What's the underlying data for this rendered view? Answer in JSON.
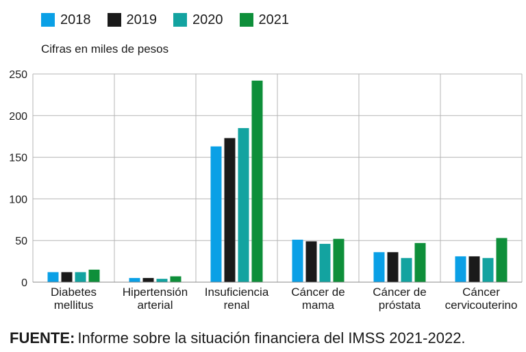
{
  "legend": [
    {
      "label": "2018",
      "color": "#0aa0e6"
    },
    {
      "label": "2019",
      "color": "#1a1a1a"
    },
    {
      "label": "2020",
      "color": "#13a3a0"
    },
    {
      "label": "2021",
      "color": "#0e8f3a"
    }
  ],
  "subtitle": "Cifras en miles de pesos",
  "source": {
    "prefix": "FUENTE:",
    "text": "Informe sobre la situación financiera del IMSS 2021-2022."
  },
  "chart_data": {
    "type": "bar",
    "categories": [
      [
        "Diabetes",
        "mellitus"
      ],
      [
        "Hipertensión",
        "arterial"
      ],
      [
        "Insuficiencia",
        "renal"
      ],
      [
        "Cáncer de",
        "mama"
      ],
      [
        "Cáncer de",
        "próstata"
      ],
      [
        "Cáncer",
        "cervicouterino"
      ]
    ],
    "series": [
      {
        "name": "2018",
        "color": "#0aa0e6",
        "values": [
          12,
          5,
          163,
          51,
          36,
          31
        ]
      },
      {
        "name": "2019",
        "color": "#1a1a1a",
        "values": [
          12,
          5,
          173,
          49,
          36,
          31
        ]
      },
      {
        "name": "2020",
        "color": "#13a3a0",
        "values": [
          12,
          4,
          185,
          46,
          29,
          29
        ]
      },
      {
        "name": "2021",
        "color": "#0e8f3a",
        "values": [
          15,
          7,
          242,
          52,
          47,
          53
        ]
      }
    ],
    "yticks": [
      0,
      50,
      100,
      150,
      200,
      250
    ],
    "ylim": [
      0,
      250
    ],
    "grid": true,
    "legend_position": "top-left"
  }
}
